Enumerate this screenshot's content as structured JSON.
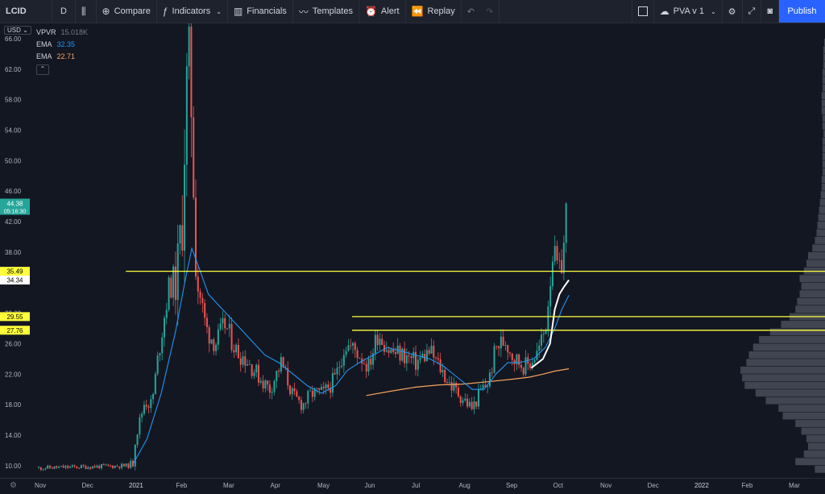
{
  "toolbar": {
    "symbol": "LCID",
    "interval": "D",
    "compare": "Compare",
    "indicators": "Indicators",
    "financials": "Financials",
    "templates": "Templates",
    "alert": "Alert",
    "replay": "Replay",
    "layout_name": "PVA v 1",
    "publish": "Publish"
  },
  "legend": {
    "vpvr_label": "VPVR",
    "vpvr_value": "15.018K",
    "ema1_label": "EMA",
    "ema1_value": "32.35",
    "ema2_label": "EMA",
    "ema2_value": "22.71"
  },
  "currency": "USD",
  "colors": {
    "up": "#26a69a",
    "down": "#ef5350",
    "ema_fast": "#2196f3",
    "ema_slow": "#f7a35c",
    "level_line": "#ffff3b",
    "vwap": "#ffffff",
    "volume_profile": "#4a4e59"
  },
  "chart_data": {
    "type": "candlestick",
    "ylim": [
      8.4,
      68
    ],
    "y_ticks": [
      "66.00",
      "62.00",
      "58.00",
      "54.00",
      "50.00",
      "46.00",
      "42.00",
      "38.00",
      "30.00",
      "26.00",
      "22.00",
      "18.00",
      "14.00",
      "10.00"
    ],
    "x_labels": [
      "Nov",
      "Dec",
      "2021",
      "Feb",
      "Mar",
      "Apr",
      "May",
      "Jun",
      "Jul",
      "Aug",
      "Sep",
      "Oct",
      "Nov",
      "Dec",
      "2022",
      "Feb",
      "Mar"
    ],
    "price_tags": [
      {
        "value": "44.38",
        "sub": "05:16:30",
        "y": 44.38,
        "bg": "#26a69a",
        "color": "#ffffff"
      },
      {
        "value": "35.49",
        "y": 35.49,
        "bg": "#ffff3b",
        "color": "#000000"
      },
      {
        "value": "34.34",
        "y": 34.34,
        "bg": "#ffffff",
        "color": "#000000"
      },
      {
        "value": "29.55",
        "y": 29.55,
        "bg": "#ffff3b",
        "color": "#000000"
      },
      {
        "value": "27.76",
        "y": 27.76,
        "bg": "#ffff3b",
        "color": "#000000"
      }
    ],
    "horizontal_levels": [
      {
        "price": 35.49,
        "start_month": 1.85
      },
      {
        "price": 29.55,
        "start_month": 6.65
      },
      {
        "price": 27.76,
        "start_month": 6.65
      }
    ],
    "anchors": [
      [
        0,
        9.7
      ],
      [
        1.9,
        10.0
      ],
      [
        2.0,
        10.3
      ],
      [
        2.05,
        13.5
      ],
      [
        2.25,
        18.5
      ],
      [
        2.4,
        18.0
      ],
      [
        2.55,
        25.0
      ],
      [
        2.75,
        33.0
      ],
      [
        2.95,
        35.5
      ],
      [
        3.05,
        43.0
      ],
      [
        3.12,
        58.0
      ],
      [
        3.22,
        62.0
      ],
      [
        3.35,
        35.0
      ],
      [
        3.55,
        28.0
      ],
      [
        3.75,
        26.0
      ],
      [
        3.95,
        28.5
      ],
      [
        4.2,
        25.0
      ],
      [
        4.4,
        24.0
      ],
      [
        4.7,
        21.5
      ],
      [
        4.9,
        20.0
      ],
      [
        5.15,
        23.5
      ],
      [
        5.4,
        19.0
      ],
      [
        5.6,
        18.0
      ],
      [
        5.8,
        19.5
      ],
      [
        6.05,
        19.5
      ],
      [
        6.3,
        21.5
      ],
      [
        6.5,
        26.0
      ],
      [
        6.75,
        25.0
      ],
      [
        7.0,
        23.0
      ],
      [
        7.2,
        27.5
      ],
      [
        7.45,
        25.0
      ],
      [
        7.75,
        24.5
      ],
      [
        8.0,
        23.5
      ],
      [
        8.3,
        25.0
      ],
      [
        8.5,
        23.0
      ],
      [
        8.75,
        20.5
      ],
      [
        8.9,
        19.5
      ],
      [
        9.05,
        18.5
      ],
      [
        9.2,
        17.5
      ],
      [
        9.4,
        20.0
      ],
      [
        9.55,
        21.0
      ],
      [
        9.7,
        25.5
      ],
      [
        9.9,
        26.5
      ],
      [
        10.1,
        24.0
      ],
      [
        10.35,
        23.0
      ],
      [
        10.6,
        25.0
      ],
      [
        10.75,
        28.0
      ],
      [
        10.83,
        33.0
      ],
      [
        10.9,
        38.0
      ],
      [
        11.0,
        36.0
      ],
      [
        11.05,
        35.0
      ],
      [
        11.13,
        38.0
      ],
      [
        11.22,
        44.38
      ]
    ],
    "ema_fast": [
      [
        2.0,
        10.2
      ],
      [
        2.3,
        13.5
      ],
      [
        2.6,
        19.5
      ],
      [
        2.9,
        27.5
      ],
      [
        3.1,
        34.0
      ],
      [
        3.25,
        38.5
      ],
      [
        3.4,
        36.0
      ],
      [
        3.6,
        32.5
      ],
      [
        3.9,
        30.5
      ],
      [
        4.2,
        28.5
      ],
      [
        4.5,
        26.5
      ],
      [
        4.8,
        24.5
      ],
      [
        5.1,
        23.5
      ],
      [
        5.4,
        22.0
      ],
      [
        5.7,
        20.5
      ],
      [
        6.0,
        19.5
      ],
      [
        6.3,
        20.5
      ],
      [
        6.55,
        22.5
      ],
      [
        6.8,
        23.5
      ],
      [
        7.1,
        24.5
      ],
      [
        7.4,
        25.5
      ],
      [
        7.7,
        25.0
      ],
      [
        8.0,
        24.5
      ],
      [
        8.3,
        24.0
      ],
      [
        8.6,
        23.0
      ],
      [
        8.9,
        21.5
      ],
      [
        9.2,
        20.0
      ],
      [
        9.45,
        20.0
      ],
      [
        9.7,
        22.0
      ],
      [
        9.95,
        23.5
      ],
      [
        10.2,
        23.5
      ],
      [
        10.5,
        24.0
      ],
      [
        10.75,
        25.5
      ],
      [
        10.95,
        28.0
      ],
      [
        11.1,
        30.5
      ],
      [
        11.25,
        32.35
      ]
    ],
    "ema_slow": [
      [
        6.95,
        19.2
      ],
      [
        7.5,
        19.8
      ],
      [
        8.0,
        20.3
      ],
      [
        8.5,
        20.6
      ],
      [
        9.0,
        20.7
      ],
      [
        9.5,
        21.0
      ],
      [
        10.0,
        21.3
      ],
      [
        10.4,
        21.6
      ],
      [
        10.7,
        22.0
      ],
      [
        10.95,
        22.4
      ],
      [
        11.25,
        22.71
      ]
    ],
    "vwap": [
      [
        10.45,
        22.8
      ],
      [
        10.7,
        24.0
      ],
      [
        10.85,
        26.0
      ],
      [
        10.95,
        30.5
      ],
      [
        11.05,
        32.5
      ],
      [
        11.15,
        33.5
      ],
      [
        11.25,
        34.34
      ]
    ],
    "volume_profile": {
      "bins": [
        [
          9.5,
          0.12
        ],
        [
          10.5,
          0.35
        ],
        [
          11.5,
          0.25
        ],
        [
          12.5,
          0.2
        ],
        [
          13.5,
          0.22
        ],
        [
          14.5,
          0.28
        ],
        [
          15.5,
          0.35
        ],
        [
          16.5,
          0.5
        ],
        [
          17.5,
          0.55
        ],
        [
          18.5,
          0.7
        ],
        [
          19.5,
          0.82
        ],
        [
          20.5,
          0.95
        ],
        [
          21.5,
          0.98
        ],
        [
          22.5,
          1.0
        ],
        [
          23.5,
          0.93
        ],
        [
          24.5,
          0.9
        ],
        [
          25.5,
          0.85
        ],
        [
          26.5,
          0.78
        ],
        [
          27.5,
          0.65
        ],
        [
          28.5,
          0.52
        ],
        [
          29.5,
          0.42
        ],
        [
          30.5,
          0.35
        ],
        [
          31.5,
          0.33
        ],
        [
          32.5,
          0.3
        ],
        [
          33.5,
          0.28
        ],
        [
          34.5,
          0.3
        ],
        [
          35.5,
          0.25
        ],
        [
          36.5,
          0.22
        ],
        [
          37.5,
          0.2
        ],
        [
          38.5,
          0.15
        ],
        [
          39.5,
          0.12
        ],
        [
          40.5,
          0.1
        ],
        [
          41.5,
          0.09
        ],
        [
          42.5,
          0.08
        ],
        [
          43.5,
          0.07
        ],
        [
          44.5,
          0.06
        ],
        [
          45.5,
          0.05
        ],
        [
          46.5,
          0.04
        ],
        [
          47.5,
          0.04
        ],
        [
          48.5,
          0.03
        ],
        [
          49.5,
          0.03
        ],
        [
          50.5,
          0.03
        ],
        [
          51.5,
          0.03
        ],
        [
          52.5,
          0.03
        ],
        [
          53.5,
          0.02
        ],
        [
          54.5,
          0.03
        ],
        [
          55.5,
          0.03
        ],
        [
          56.5,
          0.04
        ],
        [
          57.5,
          0.04
        ],
        [
          58.5,
          0.04
        ],
        [
          59.5,
          0.03
        ],
        [
          60.5,
          0.03
        ],
        [
          61.5,
          0.03
        ],
        [
          62.5,
          0.02
        ],
        [
          63.5,
          0.02
        ],
        [
          64.5,
          0.02
        ],
        [
          65.5,
          0.01
        ]
      ]
    }
  }
}
